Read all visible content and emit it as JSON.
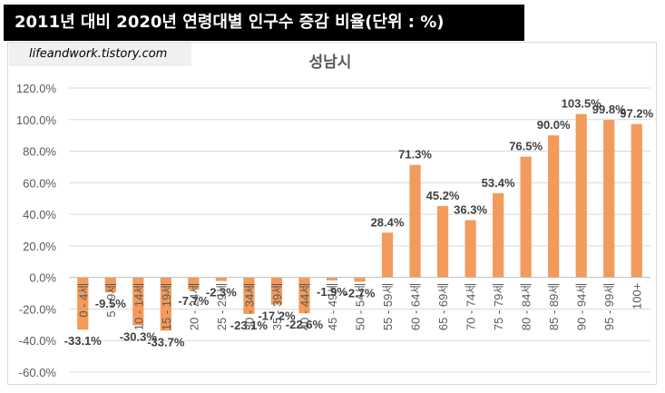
{
  "header": {
    "title": "2011년 대비 2020년 연령대별 인구수 증감 비율(단위 : %)",
    "source": "lifeandwork.tistory.com"
  },
  "colors": {
    "bar": "#f4a261",
    "barFill": "#f29b5c",
    "grid": "#d9d9d9",
    "banner": "#000000"
  },
  "chart_data": {
    "type": "bar",
    "title": "성남시",
    "xlabel": "",
    "ylabel": "",
    "ylim": [
      -60,
      120
    ],
    "ytick_step": 20,
    "grid": true,
    "categories": [
      "0 - 4세",
      "5 - 9세",
      "10 - 14세",
      "15 - 19세",
      "20 - 24세",
      "25 - 29세",
      "30 - 34세",
      "35 - 39세",
      "40 - 44세",
      "45 - 49세",
      "50 - 54세",
      "55 - 59세",
      "60 - 64세",
      "65 - 69세",
      "70 - 74세",
      "75 - 79세",
      "80 - 84세",
      "85 - 89세",
      "90 - 94세",
      "95 - 99세",
      "100+"
    ],
    "values": [
      -33.1,
      -9.5,
      -30.3,
      -33.7,
      -7.7,
      -2.3,
      -23.1,
      -17.2,
      -22.6,
      -1.9,
      -2.7,
      28.4,
      71.3,
      45.2,
      36.3,
      53.4,
      76.5,
      90.0,
      103.5,
      99.8,
      97.2
    ],
    "value_labels": [
      "-33.1%",
      "-9.5%",
      "-30.3%",
      "-33.7%",
      "-7.7%",
      "-2.3%",
      "-23.1%",
      "-17.2%",
      "-22.6%",
      "-1.9%",
      "-2.7%",
      "28.4%",
      "71.3%",
      "45.2%",
      "36.3%",
      "53.4%",
      "76.5%",
      "90.0%",
      "103.5%",
      "99.8%",
      "97.2%"
    ],
    "ytick_labels": [
      "120.0%",
      "100.0%",
      "80.0%",
      "60.0%",
      "40.0%",
      "20.0%",
      "0.0%",
      "-20.0%",
      "-40.0%",
      "-60.0%"
    ]
  }
}
